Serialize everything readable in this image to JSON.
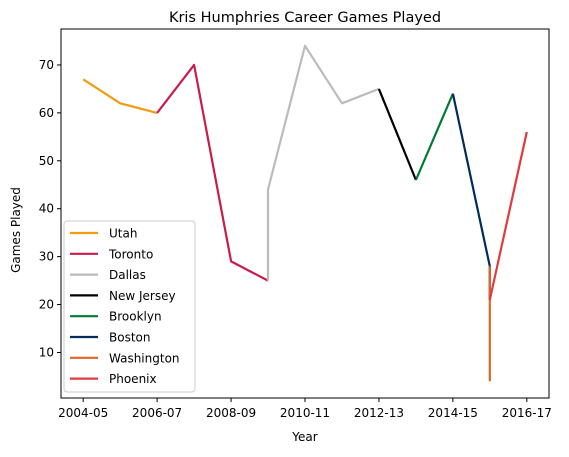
{
  "chart_data": {
    "type": "line",
    "title": "Kris Humphries Career Games Played",
    "xlabel": "Year",
    "ylabel": "Games Played",
    "x_ticks": [
      {
        "label": "2004-05",
        "pos": 0
      },
      {
        "label": "2006-07",
        "pos": 2
      },
      {
        "label": "2008-09",
        "pos": 4
      },
      {
        "label": "2010-11",
        "pos": 6
      },
      {
        "label": "2012-13",
        "pos": 8
      },
      {
        "label": "2014-15",
        "pos": 10
      },
      {
        "label": "2016-17",
        "pos": 12
      }
    ],
    "y_ticks": [
      10,
      20,
      30,
      40,
      50,
      60,
      70
    ],
    "xlim": [
      -0.6,
      12.6
    ],
    "ylim": [
      0.5,
      77.5
    ],
    "grid": false,
    "legend": "lower-left",
    "series": [
      {
        "name": "Utah",
        "color": "#f39c12",
        "points": [
          [
            0,
            67
          ],
          [
            1,
            62
          ],
          [
            2,
            60
          ]
        ]
      },
      {
        "name": "Toronto",
        "color": "#c81d4c",
        "points": [
          [
            2,
            60
          ],
          [
            3,
            70
          ],
          [
            4,
            29
          ],
          [
            5,
            25
          ]
        ]
      },
      {
        "name": "Dallas",
        "color": "#bbbbbb",
        "points": [
          [
            5,
            25
          ],
          [
            5,
            44
          ],
          [
            6,
            74
          ],
          [
            7,
            62
          ],
          [
            8,
            65
          ]
        ]
      },
      {
        "name": "New Jersey",
        "color": "#000000",
        "points": [
          [
            8,
            65
          ],
          [
            9,
            46
          ]
        ]
      },
      {
        "name": "Brooklyn",
        "color": "#007a33",
        "points": [
          [
            9,
            46
          ],
          [
            10,
            64
          ]
        ]
      },
      {
        "name": "Boston",
        "color": "#002b5c",
        "points": [
          [
            10,
            64
          ],
          [
            11,
            28
          ],
          [
            11,
            21
          ]
        ]
      },
      {
        "name": "Washington",
        "color": "#e06426",
        "points": [
          [
            11,
            28
          ],
          [
            11,
            4
          ]
        ]
      },
      {
        "name": "Phoenix",
        "color": "#e03a3e",
        "points": [
          [
            11,
            21
          ],
          [
            12,
            56
          ]
        ]
      }
    ]
  }
}
